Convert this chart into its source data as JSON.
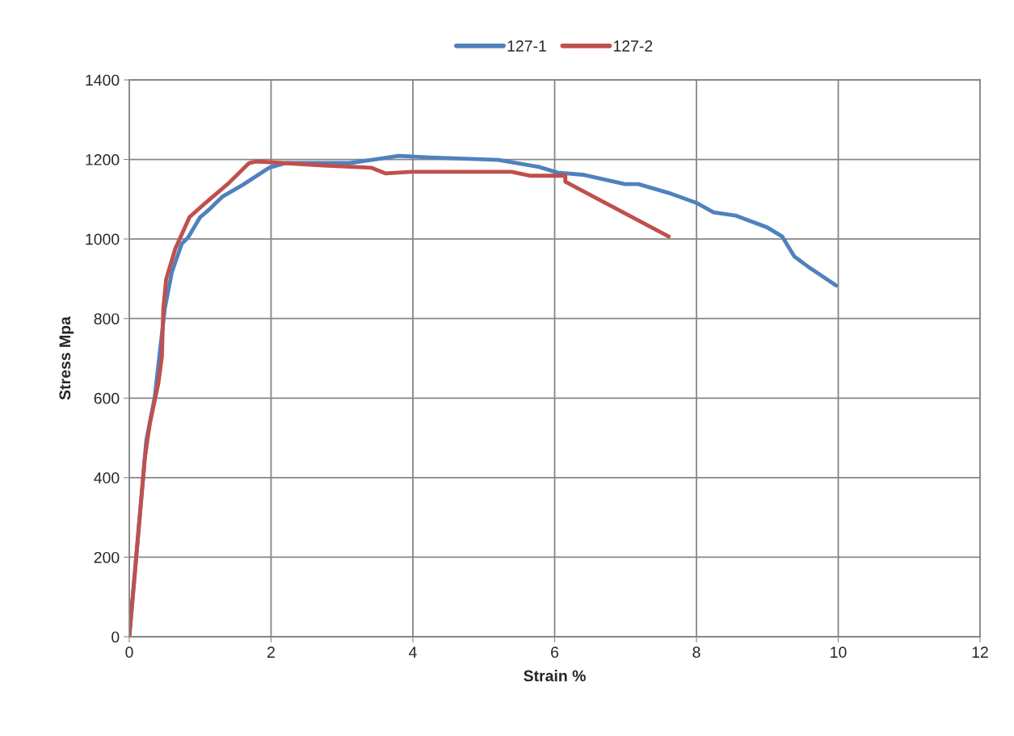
{
  "chart_data": {
    "type": "line",
    "xlabel": "Strain %",
    "ylabel": "Stress Mpa",
    "xlim": [
      0,
      12
    ],
    "xticks": [
      0,
      2,
      4,
      6,
      8,
      10,
      12
    ],
    "ylim": [
      0,
      1400
    ],
    "yticks": [
      0,
      200,
      400,
      600,
      800,
      1000,
      1200,
      1400
    ],
    "grid": true,
    "legend": "top",
    "marker": "none",
    "line_style": "solid",
    "series": [
      {
        "name": "127-1",
        "color": "#4f81bd",
        "x": [
          0,
          0.24,
          0.36,
          0.5,
          0.6,
          0.74,
          0.83,
          1.0,
          1.12,
          1.31,
          1.6,
          1.97,
          2.21,
          3.11,
          3.42,
          3.8,
          4.25,
          5.2,
          5.78,
          6.04,
          6.42,
          6.99,
          7.18,
          7.64,
          8.01,
          8.24,
          8.55,
          9.0,
          9.21,
          9.38,
          9.57,
          9.97
        ],
        "values": [
          0,
          493,
          603,
          824,
          916,
          988,
          1004,
          1055,
          1073,
          1106,
          1136,
          1179,
          1191,
          1191,
          1199,
          1209,
          1205,
          1199,
          1181,
          1167,
          1161,
          1138,
          1138,
          1114,
          1090,
          1067,
          1059,
          1029,
          1006,
          956,
          931,
          883
        ]
      },
      {
        "name": "127-2",
        "color": "#c0504d",
        "x": [
          0,
          0.22,
          0.29,
          0.41,
          0.46,
          0.48,
          0.52,
          0.65,
          0.85,
          1.07,
          1.4,
          1.69,
          1.79,
          2.17,
          2.74,
          3.42,
          3.61,
          3.99,
          5.39,
          5.66,
          6.15,
          6.15,
          7.61
        ],
        "values": [
          0,
          450,
          536,
          637,
          704,
          824,
          899,
          976,
          1055,
          1090,
          1140,
          1191,
          1195,
          1191,
          1185,
          1179,
          1165,
          1169,
          1169,
          1159,
          1159,
          1144,
          1006
        ]
      }
    ]
  }
}
